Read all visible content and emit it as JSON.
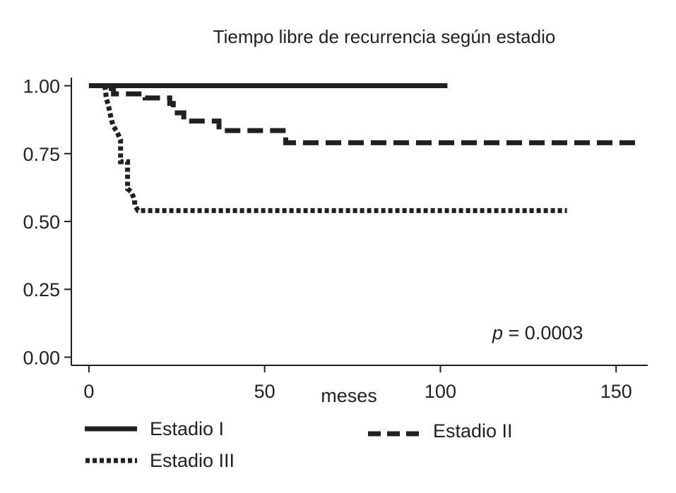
{
  "chart_data": {
    "type": "line",
    "subtype": "step",
    "title": "Tiempo libre de recurrencia según estadio",
    "xlabel": "meses",
    "ylabel": "",
    "xlim": [
      -5,
      159
    ],
    "ylim": [
      -0.03,
      1.03
    ],
    "xticks": [
      0,
      50,
      100,
      150
    ],
    "xtick_labels": [
      "0",
      "50",
      "100",
      "150"
    ],
    "yticks": [
      0.0,
      0.25,
      0.5,
      0.75,
      1.0
    ],
    "ytick_labels": [
      "0.00",
      "0.25",
      "0.50",
      "0.75",
      "1.00"
    ],
    "grid": false,
    "legend_position": "bottom",
    "annotation": {
      "prefix": "p",
      "text": " = 0.0003"
    },
    "colors": {
      "line": "#231f20",
      "axis": "#231f20",
      "text": "#231f20",
      "background": "#ffffff"
    },
    "series": [
      {
        "name": "Estadio I",
        "style": "solid",
        "points": [
          [
            0,
            1.0
          ],
          [
            102,
            1.0
          ]
        ]
      },
      {
        "name": "Estadio II",
        "style": "dashed",
        "points": [
          [
            0,
            1.0
          ],
          [
            5,
            1.0
          ],
          [
            5,
            0.99
          ],
          [
            7,
            0.99
          ],
          [
            7,
            0.97
          ],
          [
            16,
            0.97
          ],
          [
            16,
            0.955
          ],
          [
            23,
            0.955
          ],
          [
            23,
            0.935
          ],
          [
            24,
            0.935
          ],
          [
            24,
            0.9
          ],
          [
            27,
            0.9
          ],
          [
            27,
            0.87
          ],
          [
            37,
            0.87
          ],
          [
            37,
            0.835
          ],
          [
            56,
            0.835
          ],
          [
            56,
            0.79
          ],
          [
            157,
            0.79
          ]
        ]
      },
      {
        "name": "Estadio III",
        "style": "dotted",
        "points": [
          [
            4.5,
            1.0
          ],
          [
            5,
            0.95
          ],
          [
            5.5,
            0.93
          ],
          [
            6,
            0.9
          ],
          [
            6.5,
            0.87
          ],
          [
            7,
            0.85
          ],
          [
            8,
            0.83
          ],
          [
            9,
            0.8
          ],
          [
            9,
            0.72
          ],
          [
            11,
            0.72
          ],
          [
            11,
            0.7
          ],
          [
            11,
            0.62
          ],
          [
            12,
            0.61
          ],
          [
            13,
            0.58
          ],
          [
            13,
            0.56
          ],
          [
            14,
            0.54
          ],
          [
            136,
            0.54
          ]
        ]
      }
    ]
  }
}
